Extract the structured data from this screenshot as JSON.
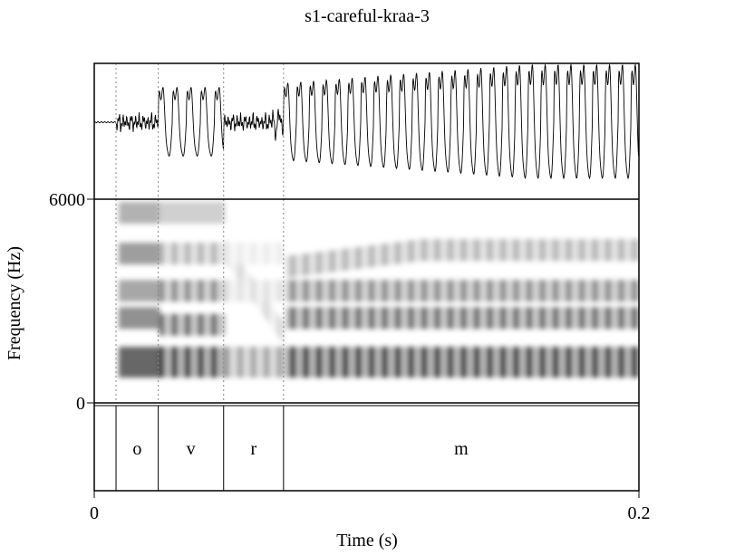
{
  "chart_data": {
    "type": "spectrogram",
    "title": "s1-careful-kraa-3",
    "xlabel": "Time (s)",
    "ylabel": "Frequency (Hz)",
    "x_range": [
      0,
      0.2
    ],
    "y_range": [
      0,
      6000
    ],
    "x_tick_labels": [
      "0",
      "0.2"
    ],
    "y_tick_labels": [
      "6000",
      "0"
    ],
    "panels": [
      "waveform",
      "spectrogram",
      "textgrid"
    ],
    "segments": [
      {
        "label": "o",
        "start": 0.008,
        "end": 0.0235
      },
      {
        "label": "v",
        "start": 0.0235,
        "end": 0.0475
      },
      {
        "label": "r",
        "start": 0.0475,
        "end": 0.0695
      },
      {
        "label": "m",
        "start": 0.0695,
        "end": 0.2
      }
    ],
    "formant_bands_hz": [
      {
        "center": 1200,
        "strength": 0.95
      },
      {
        "center": 2500,
        "strength": 0.7
      },
      {
        "center": 3300,
        "strength": 0.55
      },
      {
        "center": 4400,
        "strength": 0.35
      }
    ],
    "colors": {
      "ink": "#000000",
      "background": "#ffffff",
      "grid": "#888888"
    }
  }
}
